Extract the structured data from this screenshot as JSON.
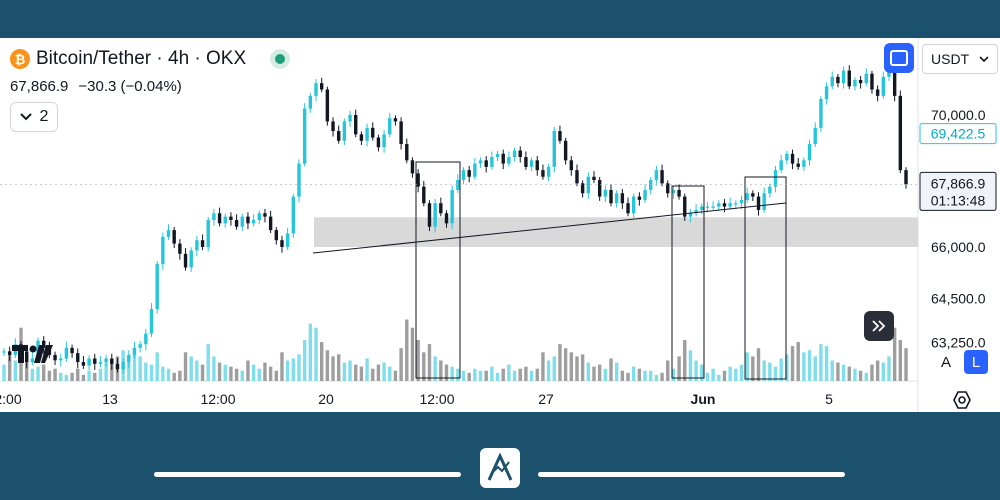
{
  "header": {
    "coin_glyph": "₿",
    "symbol_title": "Bitcoin/Tether · 4h · OKX",
    "last_price": "67,866.9",
    "change": "−30.3 (−0.04%)",
    "indicators_count": "2"
  },
  "toolbar": {
    "currency": "USDT",
    "auto_label": "A",
    "log_label": "L"
  },
  "colors": {
    "up": "#26c6da",
    "down": "#131722",
    "volume_up": "#80deea",
    "volume_down": "#9e9e9e",
    "accent": "#2962ff",
    "zone": "#d9d9d9"
  },
  "chart_data": {
    "type": "candlestick",
    "title": "Bitcoin/Tether · 4h · OKX",
    "timeframe": "4h",
    "y_ticks": [
      "70,000.0",
      "66,000.0",
      "64,500.0",
      "63,250.0"
    ],
    "x_ticks": [
      "2:00",
      "13",
      "12:00",
      "20",
      "12:00",
      "27",
      "Jun",
      "5"
    ],
    "ylim": [
      62800,
      71600
    ],
    "scale": "log",
    "price_labels": [
      {
        "value": 69422.5,
        "text": "69,422.5",
        "style": "outline"
      },
      {
        "value": 67866.9,
        "text": "67,866.9",
        "sub": "01:13:48",
        "style": "filled"
      }
    ],
    "close_series": [
      63000,
      62900,
      63200,
      63000,
      62700,
      62800,
      63300,
      63100,
      62900,
      62750,
      62800,
      63100,
      62950,
      62700,
      62600,
      62800,
      62650,
      62700,
      62800,
      62650,
      62500,
      62700,
      62900,
      63100,
      63200,
      63500,
      64200,
      65500,
      66300,
      66500,
      66100,
      65800,
      65400,
      65900,
      66200,
      66000,
      66800,
      67000,
      66700,
      66900,
      66800,
      66600,
      66900,
      66700,
      66800,
      67000,
      66900,
      66500,
      66200,
      66000,
      66400,
      67500,
      68500,
      70200,
      70600,
      71000,
      70800,
      69800,
      69500,
      69200,
      69800,
      70000,
      69400,
      69200,
      69600,
      69300,
      69000,
      69400,
      69900,
      69800,
      69100,
      68600,
      68200,
      67800,
      67300,
      66600,
      67300,
      67000,
      66700,
      67700,
      68000,
      68300,
      68100,
      68500,
      68600,
      68400,
      68700,
      68800,
      68500,
      68700,
      68900,
      68700,
      68400,
      68600,
      68300,
      68100,
      68400,
      69500,
      69200,
      68600,
      68300,
      67900,
      67600,
      68100,
      68000,
      67500,
      67700,
      67300,
      67600,
      67300,
      67000,
      67500,
      67400,
      67700,
      68000,
      68300,
      67900,
      67600,
      67700,
      67500,
      66900,
      67000,
      67100,
      67200,
      67200,
      67200,
      67300,
      67200,
      67300,
      67300,
      67400,
      67600,
      67500,
      67100,
      67600,
      67800,
      68300,
      68600,
      68800,
      68500,
      68400,
      68600,
      69100,
      69600,
      70500,
      70900,
      71200,
      71000,
      71400,
      70900,
      71100,
      71000,
      71300,
      70800,
      70600,
      71200,
      71500,
      70600,
      68300,
      67866.9
    ],
    "volume_series": [
      8,
      14,
      10,
      26,
      12,
      6,
      7,
      8,
      5,
      6,
      4,
      3,
      4,
      6,
      3,
      5,
      4,
      6,
      9,
      10,
      12,
      15,
      11,
      13,
      12,
      9,
      8,
      14,
      7,
      6,
      4,
      5,
      14,
      12,
      10,
      8,
      18,
      12,
      9,
      8,
      7,
      6,
      5,
      10,
      8,
      6,
      9,
      7,
      5,
      14,
      10,
      11,
      13,
      20,
      28,
      26,
      19,
      15,
      12,
      13,
      9,
      10,
      8,
      7,
      11,
      6,
      8,
      9,
      7,
      5,
      16,
      30,
      26,
      20,
      14,
      18,
      12,
      10,
      8,
      7,
      6,
      5,
      4,
      6,
      5,
      5,
      7,
      4,
      6,
      8,
      5,
      6,
      7,
      5,
      6,
      14,
      10,
      12,
      18,
      16,
      14,
      12,
      13,
      9,
      7,
      8,
      6,
      11,
      9,
      5,
      4,
      7,
      6,
      5,
      5,
      3,
      4,
      10,
      6,
      12,
      20,
      15,
      10,
      8,
      4,
      6,
      3,
      5,
      7,
      6,
      8,
      14,
      12,
      16,
      10,
      9,
      7,
      11,
      13,
      17,
      19,
      14,
      15,
      12,
      18,
      17,
      10,
      9,
      8,
      7,
      6,
      5,
      4,
      8,
      10,
      9,
      12,
      26,
      20,
      16
    ]
  }
}
